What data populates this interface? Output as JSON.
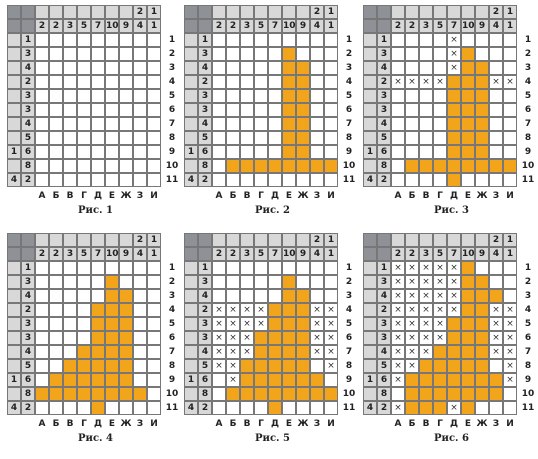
{
  "col_clues": [
    [
      "",
      "2"
    ],
    [
      "",
      "2"
    ],
    [
      "",
      "3"
    ],
    [
      "",
      "5"
    ],
    [
      "",
      "7"
    ],
    [
      "",
      "10"
    ],
    [
      "",
      "9"
    ],
    [
      "2",
      "4"
    ],
    [
      "1",
      "1"
    ]
  ],
  "row_clues": [
    [
      "",
      "1"
    ],
    [
      "",
      "3"
    ],
    [
      "",
      "4"
    ],
    [
      "",
      "2"
    ],
    [
      "",
      "3"
    ],
    [
      "",
      "3"
    ],
    [
      "",
      "4"
    ],
    [
      "",
      "5"
    ],
    [
      "1",
      "6"
    ],
    [
      "",
      "8"
    ],
    [
      "4",
      "2"
    ]
  ],
  "row_labels": [
    "1",
    "2",
    "3",
    "4",
    "5",
    "6",
    "7",
    "8",
    "9",
    "10",
    "11"
  ],
  "col_labels": [
    "А",
    "Б",
    "В",
    "Г",
    "Д",
    "Е",
    "Ж",
    "З",
    "И"
  ],
  "colors": {
    "filled": "#f2a51a",
    "corner": "#8e9196",
    "header": "#d8d8d8"
  },
  "panels": [
    {
      "caption": "Рис. 1",
      "filled": [],
      "crosses": []
    },
    {
      "caption": "Рис. 2",
      "filled": [
        [
          1,
          5
        ],
        [
          2,
          5
        ],
        [
          2,
          6
        ],
        [
          3,
          5
        ],
        [
          3,
          6
        ],
        [
          4,
          5
        ],
        [
          4,
          6
        ],
        [
          5,
          5
        ],
        [
          5,
          6
        ],
        [
          6,
          5
        ],
        [
          6,
          6
        ],
        [
          7,
          5
        ],
        [
          7,
          6
        ],
        [
          8,
          5
        ],
        [
          8,
          6
        ],
        [
          9,
          1
        ],
        [
          9,
          2
        ],
        [
          9,
          3
        ],
        [
          9,
          4
        ],
        [
          9,
          5
        ],
        [
          9,
          6
        ],
        [
          9,
          7
        ],
        [
          9,
          8
        ]
      ],
      "crosses": []
    },
    {
      "caption": "Рис. 3",
      "filled": [
        [
          1,
          5
        ],
        [
          2,
          5
        ],
        [
          2,
          6
        ],
        [
          3,
          4
        ],
        [
          3,
          5
        ],
        [
          3,
          6
        ],
        [
          4,
          4
        ],
        [
          4,
          5
        ],
        [
          4,
          6
        ],
        [
          5,
          4
        ],
        [
          5,
          5
        ],
        [
          5,
          6
        ],
        [
          6,
          4
        ],
        [
          6,
          5
        ],
        [
          6,
          6
        ],
        [
          7,
          4
        ],
        [
          7,
          5
        ],
        [
          7,
          6
        ],
        [
          8,
          4
        ],
        [
          8,
          5
        ],
        [
          8,
          6
        ],
        [
          9,
          1
        ],
        [
          9,
          2
        ],
        [
          9,
          3
        ],
        [
          9,
          4
        ],
        [
          9,
          5
        ],
        [
          9,
          6
        ],
        [
          9,
          7
        ],
        [
          9,
          8
        ],
        [
          10,
          4
        ]
      ],
      "crosses": [
        [
          0,
          4
        ],
        [
          1,
          4
        ],
        [
          2,
          4
        ],
        [
          3,
          0
        ],
        [
          3,
          1
        ],
        [
          3,
          2
        ],
        [
          3,
          3
        ],
        [
          3,
          7
        ],
        [
          3,
          8
        ]
      ]
    },
    {
      "caption": "Рис. 4",
      "filled": [
        [
          1,
          5
        ],
        [
          2,
          5
        ],
        [
          2,
          6
        ],
        [
          3,
          4
        ],
        [
          3,
          5
        ],
        [
          3,
          6
        ],
        [
          4,
          4
        ],
        [
          4,
          5
        ],
        [
          4,
          6
        ],
        [
          5,
          4
        ],
        [
          5,
          5
        ],
        [
          5,
          6
        ],
        [
          6,
          3
        ],
        [
          6,
          4
        ],
        [
          6,
          5
        ],
        [
          6,
          6
        ],
        [
          7,
          2
        ],
        [
          7,
          3
        ],
        [
          7,
          4
        ],
        [
          7,
          5
        ],
        [
          7,
          6
        ],
        [
          8,
          1
        ],
        [
          8,
          2
        ],
        [
          8,
          3
        ],
        [
          8,
          4
        ],
        [
          8,
          5
        ],
        [
          8,
          6
        ],
        [
          9,
          0
        ],
        [
          9,
          1
        ],
        [
          9,
          2
        ],
        [
          9,
          3
        ],
        [
          9,
          4
        ],
        [
          9,
          5
        ],
        [
          9,
          6
        ],
        [
          9,
          7
        ],
        [
          10,
          4
        ]
      ],
      "crosses": []
    },
    {
      "caption": "Рис. 5",
      "filled": [
        [
          1,
          5
        ],
        [
          2,
          5
        ],
        [
          2,
          6
        ],
        [
          3,
          4
        ],
        [
          3,
          5
        ],
        [
          3,
          6
        ],
        [
          4,
          4
        ],
        [
          4,
          5
        ],
        [
          4,
          6
        ],
        [
          5,
          3
        ],
        [
          5,
          4
        ],
        [
          5,
          5
        ],
        [
          5,
          6
        ],
        [
          6,
          3
        ],
        [
          6,
          4
        ],
        [
          6,
          5
        ],
        [
          6,
          6
        ],
        [
          7,
          2
        ],
        [
          7,
          3
        ],
        [
          7,
          4
        ],
        [
          7,
          5
        ],
        [
          7,
          6
        ],
        [
          8,
          2
        ],
        [
          8,
          3
        ],
        [
          8,
          4
        ],
        [
          8,
          5
        ],
        [
          8,
          6
        ],
        [
          8,
          7
        ],
        [
          9,
          1
        ],
        [
          9,
          2
        ],
        [
          9,
          3
        ],
        [
          9,
          4
        ],
        [
          9,
          5
        ],
        [
          9,
          6
        ],
        [
          9,
          7
        ],
        [
          9,
          8
        ],
        [
          10,
          4
        ]
      ],
      "crosses": [
        [
          3,
          0
        ],
        [
          3,
          1
        ],
        [
          3,
          2
        ],
        [
          3,
          3
        ],
        [
          3,
          4
        ],
        [
          3,
          7
        ],
        [
          3,
          8
        ],
        [
          4,
          0
        ],
        [
          4,
          1
        ],
        [
          4,
          2
        ],
        [
          4,
          3
        ],
        [
          4,
          7
        ],
        [
          4,
          8
        ],
        [
          5,
          0
        ],
        [
          5,
          1
        ],
        [
          5,
          2
        ],
        [
          5,
          7
        ],
        [
          5,
          8
        ],
        [
          6,
          0
        ],
        [
          6,
          1
        ],
        [
          6,
          2
        ],
        [
          6,
          7
        ],
        [
          6,
          8
        ],
        [
          7,
          0
        ],
        [
          7,
          1
        ],
        [
          7,
          8
        ],
        [
          8,
          1
        ]
      ]
    },
    {
      "caption": "Рис. 6",
      "filled": [
        [
          0,
          5
        ],
        [
          1,
          5
        ],
        [
          1,
          6
        ],
        [
          2,
          5
        ],
        [
          2,
          6
        ],
        [
          2,
          7
        ],
        [
          3,
          5
        ],
        [
          3,
          6
        ],
        [
          4,
          4
        ],
        [
          4,
          5
        ],
        [
          4,
          6
        ],
        [
          5,
          4
        ],
        [
          5,
          5
        ],
        [
          5,
          6
        ],
        [
          6,
          3
        ],
        [
          6,
          4
        ],
        [
          6,
          5
        ],
        [
          6,
          6
        ],
        [
          7,
          2
        ],
        [
          7,
          3
        ],
        [
          7,
          4
        ],
        [
          7,
          5
        ],
        [
          7,
          6
        ],
        [
          8,
          1
        ],
        [
          8,
          2
        ],
        [
          8,
          3
        ],
        [
          8,
          4
        ],
        [
          8,
          5
        ],
        [
          8,
          6
        ],
        [
          8,
          7
        ],
        [
          9,
          1
        ],
        [
          9,
          2
        ],
        [
          9,
          3
        ],
        [
          9,
          4
        ],
        [
          9,
          5
        ],
        [
          9,
          6
        ],
        [
          9,
          7
        ],
        [
          10,
          1
        ],
        [
          10,
          2
        ],
        [
          10,
          3
        ],
        [
          10,
          5
        ]
      ],
      "crosses": [
        [
          0,
          0
        ],
        [
          0,
          1
        ],
        [
          0,
          2
        ],
        [
          0,
          3
        ],
        [
          0,
          4
        ],
        [
          1,
          0
        ],
        [
          1,
          1
        ],
        [
          1,
          2
        ],
        [
          1,
          3
        ],
        [
          1,
          4
        ],
        [
          2,
          0
        ],
        [
          2,
          1
        ],
        [
          2,
          2
        ],
        [
          2,
          3
        ],
        [
          2,
          4
        ],
        [
          3,
          0
        ],
        [
          3,
          1
        ],
        [
          3,
          2
        ],
        [
          3,
          3
        ],
        [
          3,
          4
        ],
        [
          3,
          7
        ],
        [
          3,
          8
        ],
        [
          4,
          0
        ],
        [
          4,
          1
        ],
        [
          4,
          2
        ],
        [
          4,
          3
        ],
        [
          4,
          7
        ],
        [
          4,
          8
        ],
        [
          5,
          0
        ],
        [
          5,
          1
        ],
        [
          5,
          2
        ],
        [
          5,
          3
        ],
        [
          5,
          7
        ],
        [
          5,
          8
        ],
        [
          6,
          0
        ],
        [
          6,
          1
        ],
        [
          6,
          2
        ],
        [
          6,
          7
        ],
        [
          6,
          8
        ],
        [
          7,
          0
        ],
        [
          7,
          1
        ],
        [
          7,
          8
        ],
        [
          8,
          0
        ],
        [
          8,
          8
        ],
        [
          10,
          0
        ],
        [
          10,
          4
        ]
      ]
    }
  ]
}
